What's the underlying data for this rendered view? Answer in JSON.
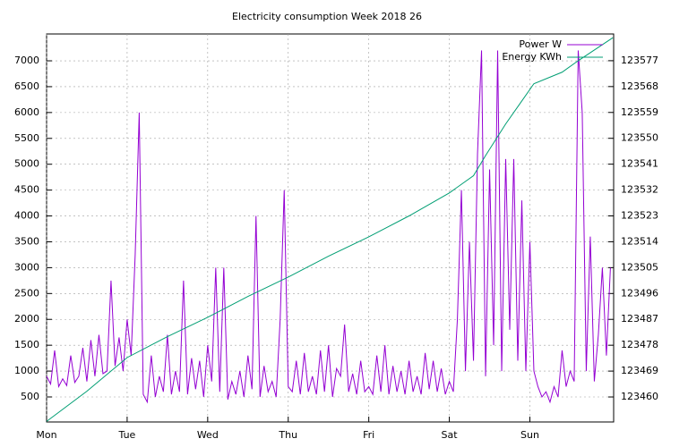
{
  "chart_data": {
    "type": "line",
    "title": "Electricity consumption Week 2018 26",
    "xlim": [
      0,
      7.04
    ],
    "xticks": [
      {
        "value": 0,
        "label": "Mon"
      },
      {
        "value": 1,
        "label": "Tue"
      },
      {
        "value": 2,
        "label": "Wed"
      },
      {
        "value": 3,
        "label": "Thu"
      },
      {
        "value": 4,
        "label": "Fri"
      },
      {
        "value": 5,
        "label": "Sat"
      },
      {
        "value": 6,
        "label": "Sun"
      }
    ],
    "ylim": [
      16,
      7519
    ],
    "yticks": [
      500,
      1000,
      1500,
      2000,
      2500,
      3000,
      3500,
      4000,
      4500,
      5000,
      5500,
      6000,
      6500,
      7000
    ],
    "y2lim": [
      123451.3,
      123586.3
    ],
    "y2ticks": [
      123460,
      123469,
      123478,
      123487,
      123496,
      123505,
      123514,
      123523,
      123532,
      123541,
      123550,
      123559,
      123568,
      123577
    ],
    "grid": true,
    "legend": "top-right",
    "series": [
      {
        "name": "Power W",
        "color": "#9400d3",
        "x": [
          0,
          0.05,
          0.1,
          0.15,
          0.2,
          0.25,
          0.3,
          0.35,
          0.4,
          0.45,
          0.5,
          0.55,
          0.6,
          0.65,
          0.7,
          0.75,
          0.8,
          0.85,
          0.9,
          0.95,
          1,
          1.05,
          1.1,
          1.15,
          1.2,
          1.25,
          1.3,
          1.35,
          1.4,
          1.45,
          1.5,
          1.55,
          1.6,
          1.65,
          1.7,
          1.75,
          1.8,
          1.85,
          1.9,
          1.95,
          2,
          2.05,
          2.1,
          2.15,
          2.2,
          2.25,
          2.3,
          2.35,
          2.4,
          2.45,
          2.5,
          2.55,
          2.6,
          2.65,
          2.7,
          2.75,
          2.8,
          2.85,
          2.9,
          2.95,
          3,
          3.05,
          3.1,
          3.15,
          3.2,
          3.25,
          3.3,
          3.35,
          3.4,
          3.45,
          3.5,
          3.55,
          3.6,
          3.65,
          3.7,
          3.75,
          3.8,
          3.85,
          3.9,
          3.95,
          4,
          4.05,
          4.1,
          4.15,
          4.2,
          4.25,
          4.3,
          4.35,
          4.4,
          4.45,
          4.5,
          4.55,
          4.6,
          4.65,
          4.7,
          4.75,
          4.8,
          4.85,
          4.9,
          4.95,
          5,
          5.05,
          5.1,
          5.15,
          5.2,
          5.25,
          5.3,
          5.35,
          5.4,
          5.45,
          5.5,
          5.55,
          5.6,
          5.65,
          5.7,
          5.75,
          5.8,
          5.85,
          5.9,
          5.95,
          6,
          6.05,
          6.1,
          6.15,
          6.2,
          6.25,
          6.3,
          6.35,
          6.4,
          6.45,
          6.5,
          6.55,
          6.6,
          6.65,
          6.7,
          6.75,
          6.8,
          6.85,
          6.9,
          6.95,
          7
        ],
        "values": [
          900,
          750,
          1400,
          700,
          850,
          720,
          1300,
          780,
          900,
          1450,
          800,
          1600,
          900,
          1700,
          950,
          1000,
          2750,
          1100,
          1650,
          1000,
          2000,
          1300,
          3250,
          6000,
          550,
          400,
          1300,
          500,
          900,
          600,
          1700,
          550,
          1000,
          600,
          2750,
          550,
          1250,
          650,
          1200,
          500,
          1500,
          800,
          3000,
          600,
          3000,
          450,
          800,
          550,
          1000,
          500,
          1300,
          650,
          4000,
          500,
          1100,
          600,
          800,
          500,
          2000,
          4500,
          700,
          600,
          1200,
          550,
          1350,
          600,
          900,
          550,
          1400,
          600,
          1500,
          500,
          1050,
          900,
          1900,
          600,
          950,
          550,
          1200,
          600,
          700,
          550,
          1300,
          600,
          1500,
          550,
          1100,
          600,
          1000,
          550,
          1200,
          600,
          900,
          550,
          1350,
          650,
          1200,
          600,
          1050,
          550,
          800,
          600,
          2000,
          4500,
          1000,
          3500,
          1200,
          5200,
          7200,
          900,
          4900,
          1500,
          7200,
          1000,
          5100,
          1800,
          5100,
          1200,
          4300,
          1000,
          3500,
          1000,
          700,
          500,
          600,
          400,
          700,
          500,
          1400,
          700,
          1000,
          800,
          7200,
          6000,
          1000,
          3600,
          800,
          1700,
          3000,
          1300,
          3000
        ]
      },
      {
        "name": "Energy KWh",
        "color": "#009e73",
        "axis": "y2",
        "x": [
          0,
          0.5,
          1,
          1.5,
          2,
          2.5,
          3,
          3.5,
          4,
          4.5,
          5,
          5.3,
          5.45,
          5.7,
          5.9,
          6.05,
          6.4,
          6.6,
          7.03
        ],
        "values": [
          123451.5,
          123462,
          123473.7,
          123481,
          123487.7,
          123495,
          123501.7,
          123509,
          123515.7,
          123523,
          123531,
          123537,
          123544,
          123555,
          123563,
          123569,
          123573,
          123577,
          123585
        ]
      }
    ]
  }
}
